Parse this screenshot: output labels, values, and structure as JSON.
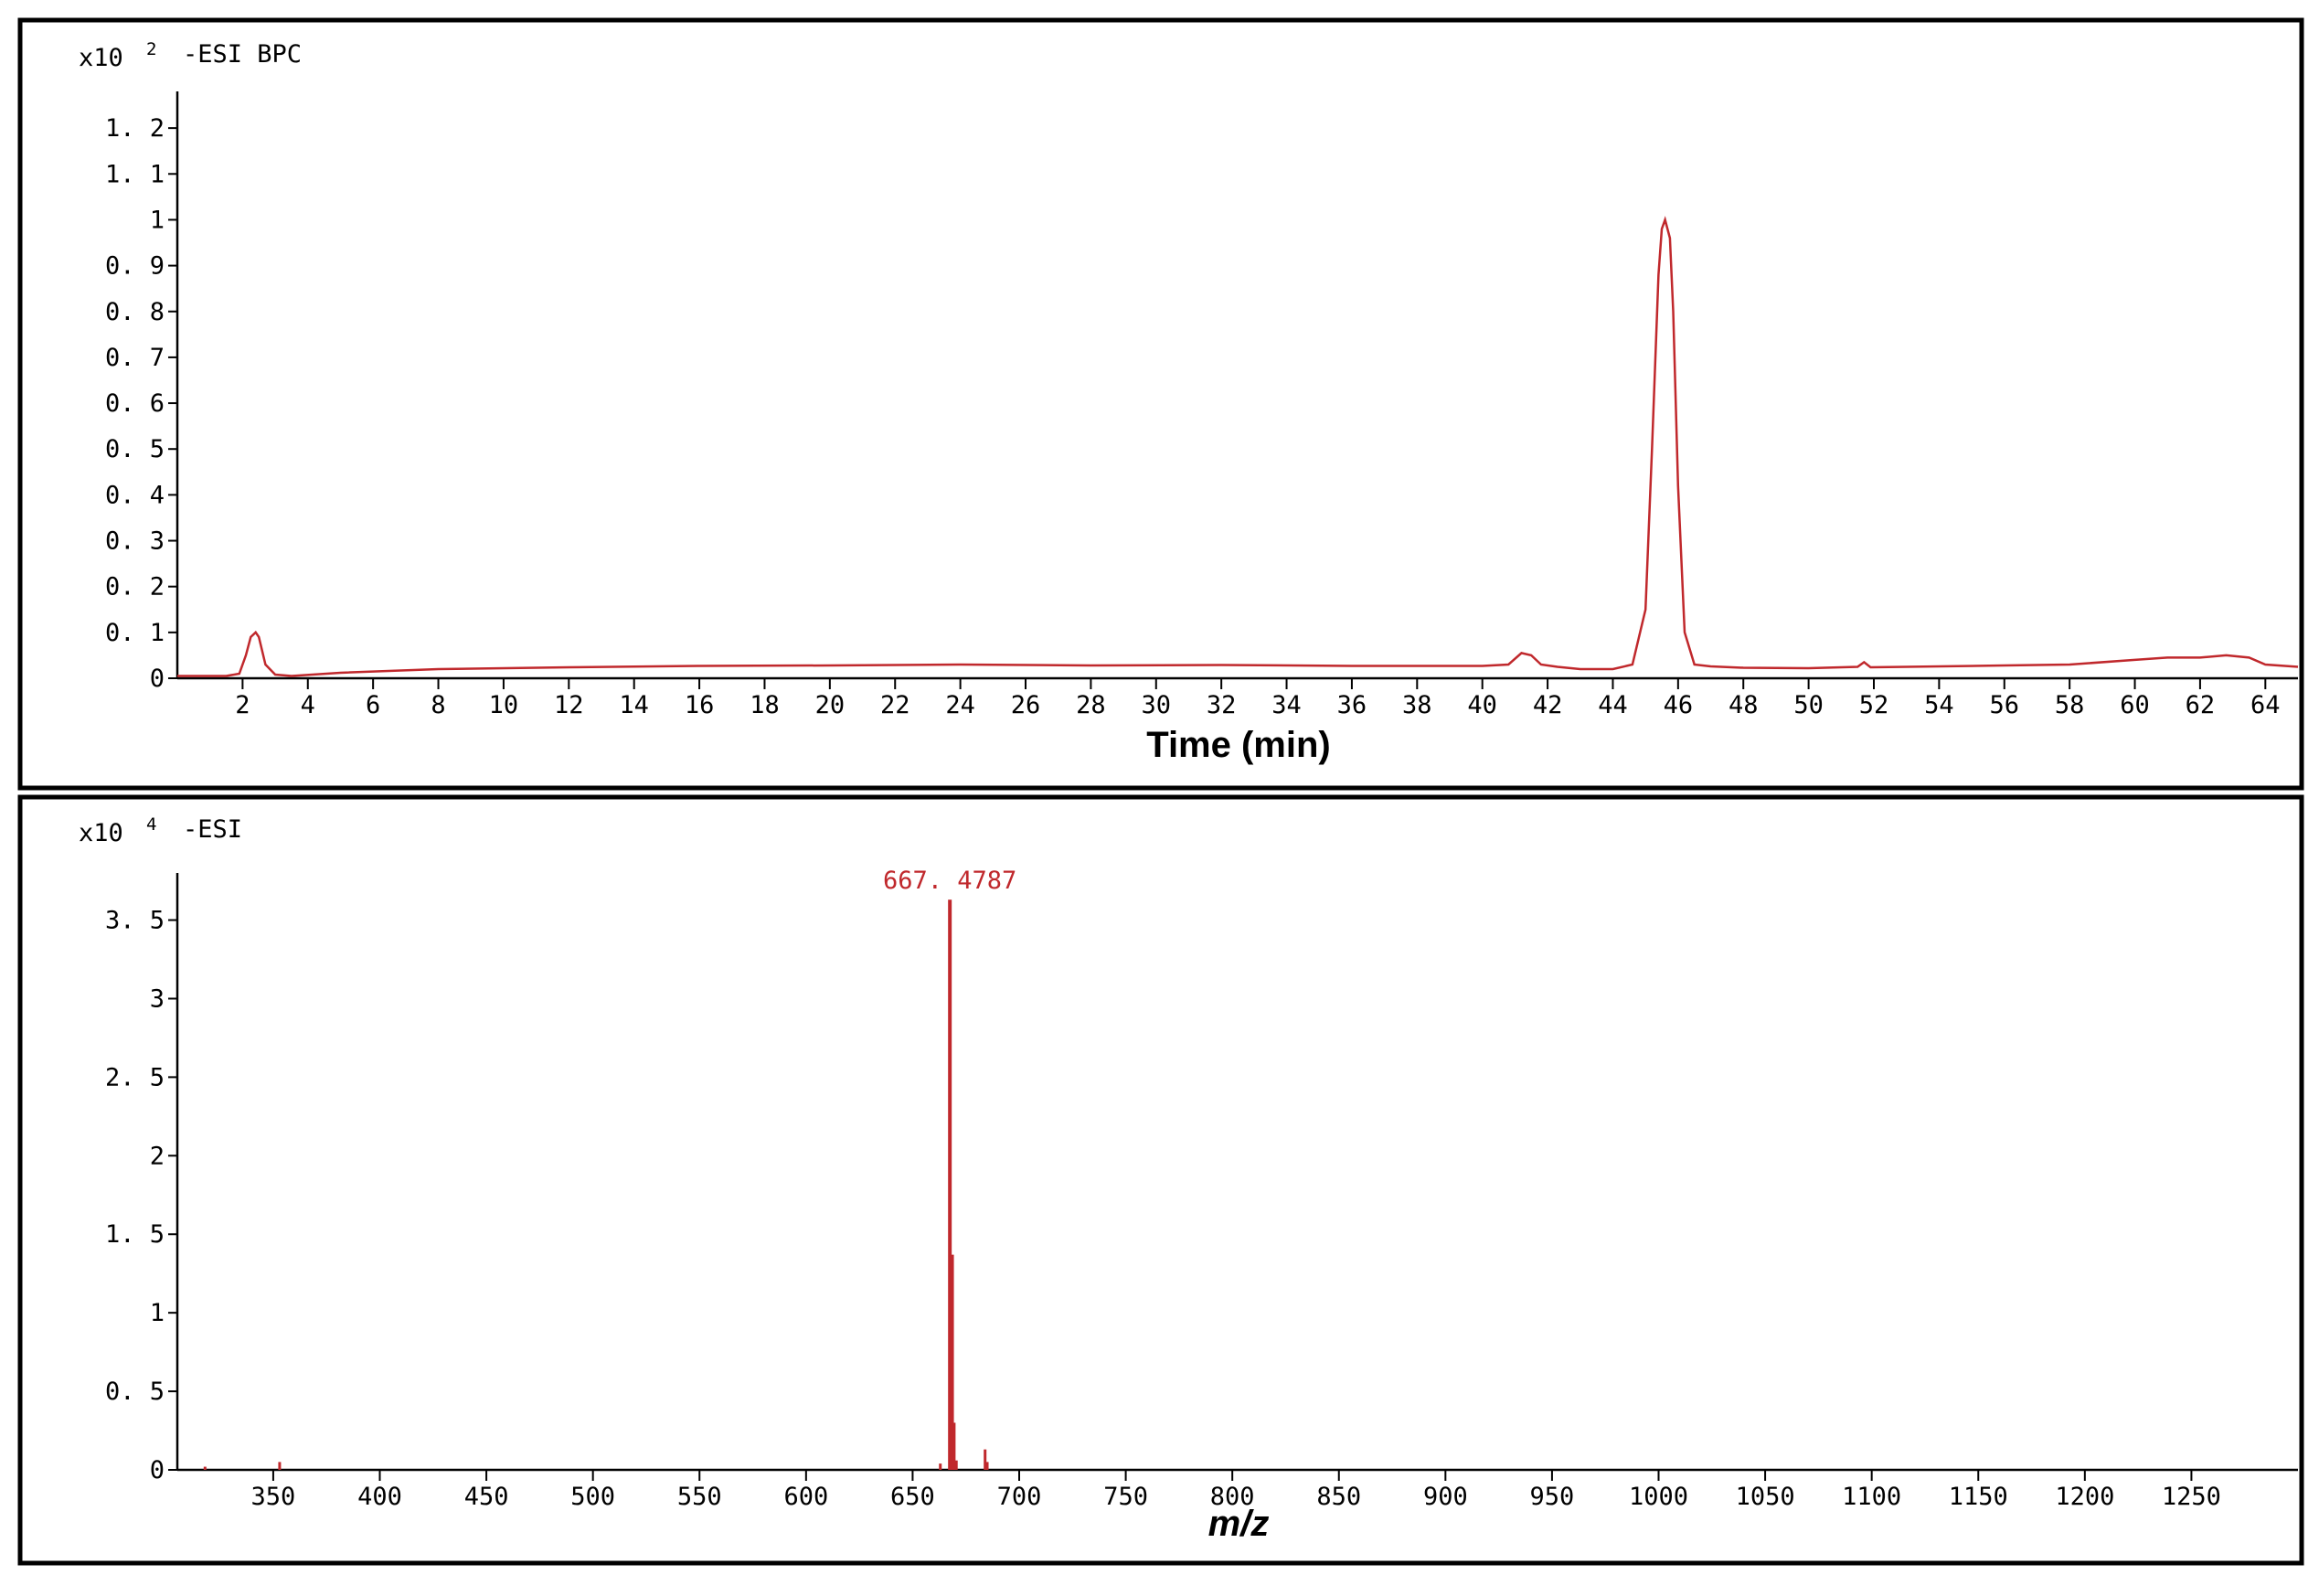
{
  "colors": {
    "trace": "#c0282c",
    "axis": "#000000",
    "frame": "#000000"
  },
  "chart_data": [
    {
      "type": "line",
      "scale_label": "x10",
      "scale_exponent": "2",
      "trace_label": "-ESI BPC",
      "xlabel": "Time (min)",
      "ylabel": "",
      "xlim": [
        0,
        65
      ],
      "ylim": [
        0,
        1.28
      ],
      "x_ticks": [
        2,
        4,
        6,
        8,
        10,
        12,
        14,
        16,
        18,
        20,
        22,
        24,
        26,
        28,
        30,
        32,
        34,
        36,
        38,
        40,
        42,
        44,
        46,
        48,
        50,
        52,
        54,
        56,
        58,
        60,
        62,
        64
      ],
      "y_ticks": [
        {
          "value": 0,
          "label": "0"
        },
        {
          "value": 0.1,
          "label": "0. 1"
        },
        {
          "value": 0.2,
          "label": "0. 2"
        },
        {
          "value": 0.3,
          "label": "0. 3"
        },
        {
          "value": 0.4,
          "label": "0. 4"
        },
        {
          "value": 0.5,
          "label": "0. 5"
        },
        {
          "value": 0.6,
          "label": "0. 6"
        },
        {
          "value": 0.7,
          "label": "0. 7"
        },
        {
          "value": 0.8,
          "label": "0. 8"
        },
        {
          "value": 0.9,
          "label": "0. 9"
        },
        {
          "value": 1.0,
          "label": "1"
        },
        {
          "value": 1.1,
          "label": "1. 1"
        },
        {
          "value": 1.2,
          "label": "1. 2"
        }
      ],
      "series": [
        {
          "x": [
            0,
            1.5,
            1.9,
            2.1,
            2.25,
            2.4,
            2.5,
            2.7,
            3.0,
            3.5,
            5,
            8,
            12,
            16,
            20,
            24,
            28,
            32,
            36,
            38,
            40,
            40.8,
            41.2,
            41.5,
            41.8,
            42.3,
            43,
            44,
            44.6,
            45.0,
            45.2,
            45.4,
            45.5,
            45.6,
            45.75,
            45.85,
            46.0,
            46.2,
            46.5,
            47,
            48,
            50,
            51.5,
            51.7,
            51.9,
            53,
            56,
            58,
            60,
            61,
            62,
            62.8,
            63.5,
            64,
            65
          ],
          "y": [
            0.005,
            0.005,
            0.01,
            0.05,
            0.09,
            0.1,
            0.09,
            0.03,
            0.008,
            0.005,
            0.012,
            0.02,
            0.024,
            0.027,
            0.028,
            0.03,
            0.028,
            0.029,
            0.027,
            0.027,
            0.027,
            0.03,
            0.055,
            0.05,
            0.03,
            0.025,
            0.02,
            0.02,
            0.03,
            0.15,
            0.5,
            0.88,
            0.98,
            1.0,
            0.96,
            0.8,
            0.42,
            0.1,
            0.03,
            0.026,
            0.023,
            0.022,
            0.025,
            0.035,
            0.024,
            0.025,
            0.028,
            0.03,
            0.04,
            0.045,
            0.045,
            0.05,
            0.045,
            0.03,
            0.025
          ]
        }
      ]
    },
    {
      "type": "bar",
      "scale_label": "x10",
      "scale_exponent": "4",
      "trace_label": "-ESI",
      "xlabel_italic": "m/z",
      "ylabel": "",
      "xlim": [
        305,
        1300
      ],
      "ylim": [
        0,
        3.8
      ],
      "x_ticks": [
        350,
        400,
        450,
        500,
        550,
        600,
        650,
        700,
        750,
        800,
        850,
        900,
        950,
        1000,
        1050,
        1100,
        1150,
        1200,
        1250
      ],
      "y_ticks": [
        {
          "value": 0,
          "label": "0"
        },
        {
          "value": 0.5,
          "label": "0. 5"
        },
        {
          "value": 1.0,
          "label": "1"
        },
        {
          "value": 1.5,
          "label": "1. 5"
        },
        {
          "value": 2.0,
          "label": "2"
        },
        {
          "value": 2.5,
          "label": "2. 5"
        },
        {
          "value": 3.0,
          "label": "3"
        },
        {
          "value": 3.5,
          "label": "3. 5"
        }
      ],
      "peaks": [
        {
          "mz": 318,
          "intensity": 0.02
        },
        {
          "mz": 353,
          "intensity": 0.05
        },
        {
          "mz": 663,
          "intensity": 0.04
        },
        {
          "mz": 667.4787,
          "intensity": 3.63,
          "label": "667. 4787"
        },
        {
          "mz": 668.5,
          "intensity": 1.37
        },
        {
          "mz": 669.5,
          "intensity": 0.3
        },
        {
          "mz": 670.5,
          "intensity": 0.06
        },
        {
          "mz": 684,
          "intensity": 0.13
        },
        {
          "mz": 685,
          "intensity": 0.05
        }
      ]
    }
  ]
}
